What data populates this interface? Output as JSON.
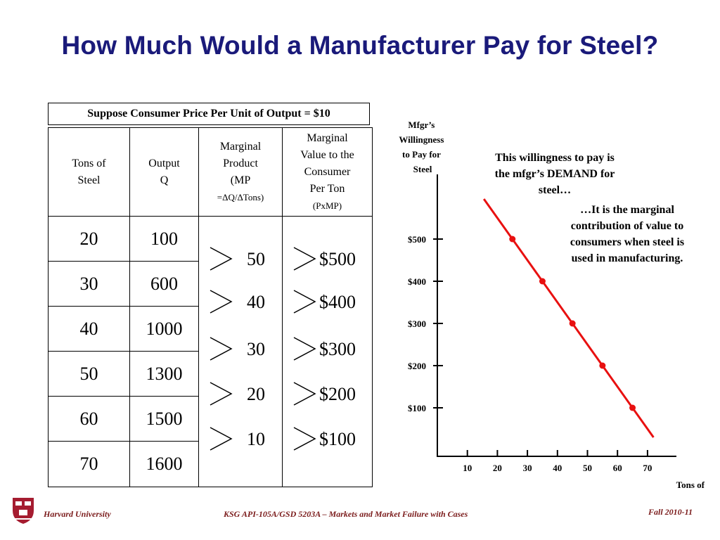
{
  "title": "How Much Would a Manufacturer Pay for Steel?",
  "supposition": "Suppose Consumer Price Per Unit of Output = $10",
  "table": {
    "headers": {
      "tons": [
        "Tons of",
        "Steel"
      ],
      "output": [
        "Output",
        "Q"
      ],
      "mp": [
        "Marginal",
        "Product",
        "(MP",
        "=ΔQ/ΔTons)"
      ],
      "mv": [
        "Marginal",
        "Value to the",
        "Consumer",
        "Per Ton",
        "(PxMP)"
      ]
    },
    "rows": [
      {
        "tons": "20",
        "output": "100"
      },
      {
        "tons": "30",
        "output": "600"
      },
      {
        "tons": "40",
        "output": "1000"
      },
      {
        "tons": "50",
        "output": "1300"
      },
      {
        "tons": "60",
        "output": "1500"
      },
      {
        "tons": "70",
        "output": "1600"
      }
    ],
    "marginal_products": [
      "50",
      "40",
      "30",
      "20",
      "10"
    ],
    "marginal_values": [
      "$500",
      "$400",
      "$300",
      "$200",
      "$100"
    ]
  },
  "chart_data": {
    "type": "line",
    "ylabel": "Mfgr’s Willingness to Pay for Steel",
    "xlabel": "Tons of",
    "y_ticks": [
      "$500",
      "$400",
      "$300",
      "$200",
      "$100"
    ],
    "x_ticks": [
      "10",
      "20",
      "30",
      "40",
      "50",
      "60",
      "70"
    ],
    "points": [
      {
        "x": 25,
        "y": 500
      },
      {
        "x": 35,
        "y": 400
      },
      {
        "x": 45,
        "y": 300
      },
      {
        "x": 55,
        "y": 200
      },
      {
        "x": 65,
        "y": 100
      }
    ],
    "line_color": "#e81010"
  },
  "annotations": {
    "demand": "This willingness to pay is the mfgr’s DEMAND for steel…",
    "marginal": "…It is the marginal contribution of value to consumers when steel is used in manufacturing."
  },
  "footer": {
    "left": "Harvard University",
    "center": "KSG API-105A/GSD 5203A – Markets and Market Failure with Cases",
    "right": "Fall 2010-11"
  }
}
